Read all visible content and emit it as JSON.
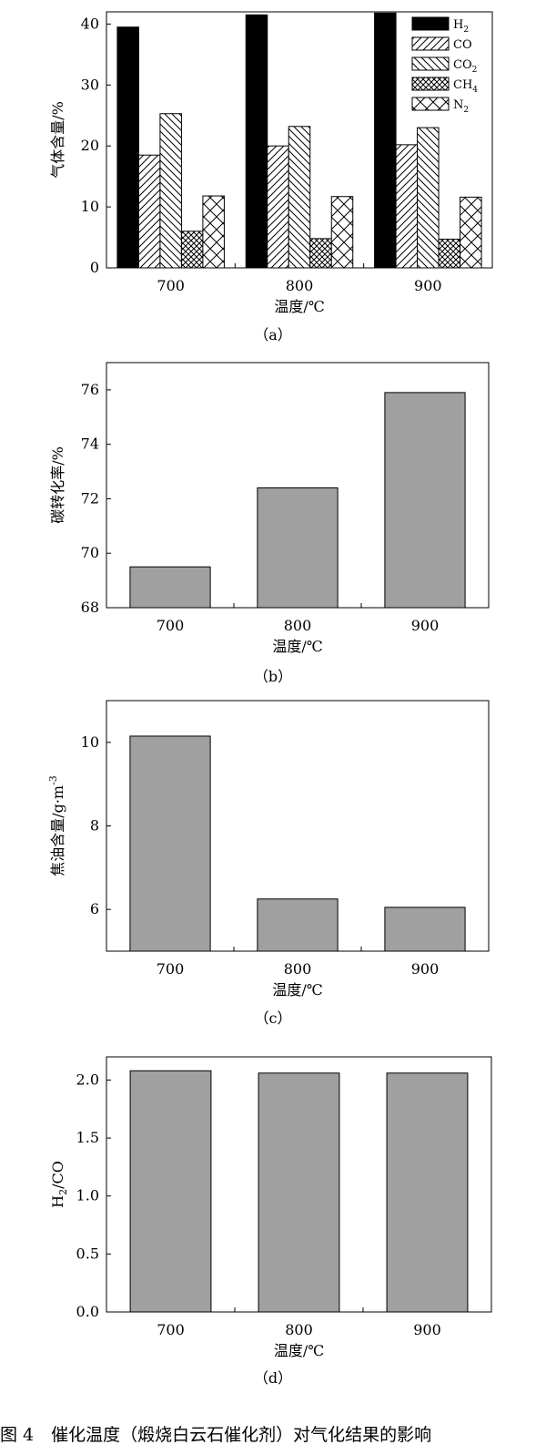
{
  "figure_caption": "图 4　催化温度（煅烧白云石催化剂）对气化结果的影响",
  "colors": {
    "bar_gray": "#a0a0a0",
    "h2_black": "#000000",
    "frame": "#000000"
  },
  "chart_data": [
    {
      "panel_label": "（a）",
      "type": "bar",
      "categories": [
        "700",
        "800",
        "900"
      ],
      "xlabel": "温度/℃",
      "ylabel": "气体含量/%",
      "ylim": [
        0,
        42
      ],
      "yticks": [
        0,
        10,
        20,
        30,
        40
      ],
      "legend_position": "top-right",
      "series": [
        {
          "name": "H",
          "sub": "2",
          "pattern": "solid",
          "values": [
            39.5,
            41.5,
            41.8
          ]
        },
        {
          "name": "CO",
          "sub": "",
          "pattern": "diag-up",
          "values": [
            18.5,
            20.0,
            20.2
          ]
        },
        {
          "name": "CO",
          "sub": "2",
          "pattern": "diag-down",
          "values": [
            25.3,
            23.2,
            23.0
          ]
        },
        {
          "name": "CH",
          "sub": "4",
          "pattern": "crosshatch",
          "values": [
            6.0,
            4.8,
            4.7
          ]
        },
        {
          "name": "N",
          "sub": "2",
          "pattern": "x",
          "values": [
            11.8,
            11.7,
            11.6
          ]
        }
      ]
    },
    {
      "panel_label": "（b）",
      "type": "bar",
      "categories": [
        "700",
        "800",
        "900"
      ],
      "xlabel": "温度/℃",
      "ylabel": "碳转化率/%",
      "ylim": [
        68,
        77
      ],
      "yticks": [
        68,
        70,
        72,
        74,
        76
      ],
      "values": [
        69.5,
        72.4,
        75.9
      ]
    },
    {
      "panel_label": "（c）",
      "type": "bar",
      "categories": [
        "700",
        "800",
        "900"
      ],
      "xlabel": "温度/℃",
      "ylabel": "焦油含量/g·m",
      "ylabel_sup": "-3",
      "ylim": [
        5,
        11
      ],
      "yticks": [
        6,
        8,
        10
      ],
      "values": [
        10.15,
        6.25,
        6.05
      ]
    },
    {
      "panel_label": "（d）",
      "type": "bar",
      "categories": [
        "700",
        "800",
        "900"
      ],
      "xlabel": "温度/℃",
      "ylabel": "H",
      "ylabel_sub": "2",
      "ylabel_tail": "/CO",
      "ylim": [
        0,
        2.2
      ],
      "yticks": [
        0.0,
        0.5,
        1.0,
        1.5,
        2.0
      ],
      "ytick_format": 1,
      "values": [
        2.08,
        2.06,
        2.06
      ]
    }
  ]
}
